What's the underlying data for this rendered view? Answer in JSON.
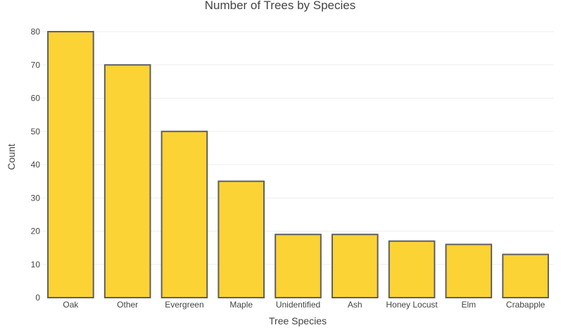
{
  "chart_data": {
    "type": "bar",
    "title": "Number of Trees by Species",
    "xlabel": "Tree Species",
    "ylabel": "Count",
    "categories": [
      "Oak",
      "Other",
      "Evergreen",
      "Maple",
      "Unidentified",
      "Ash",
      "Honey Locust",
      "Elm",
      "Crabapple"
    ],
    "values": [
      80,
      70,
      50,
      35,
      19,
      19,
      17,
      16,
      13
    ],
    "ylim": [
      0,
      80
    ],
    "yticks": [
      0,
      10,
      20,
      30,
      40,
      50,
      60,
      70,
      80
    ],
    "grid": true,
    "colors": {
      "bar_fill": "#FBD334",
      "bar_stroke": "#5F5F5F",
      "text": "#444444",
      "grid": "#eeeeee"
    }
  }
}
